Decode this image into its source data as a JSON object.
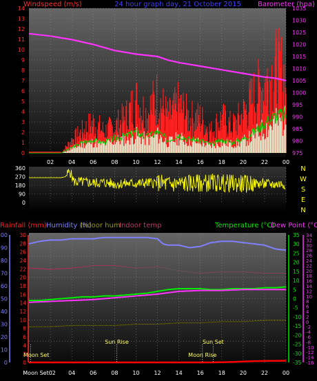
{
  "chart_data": [
    {
      "type": "line",
      "panel": "wind-pressure",
      "title": "24 hour graph day, 21 October 2015",
      "left_axis_label": "Windspeed (m/s)",
      "right_axis_label": "Barometer (hpa)",
      "x_ticks": [
        "02",
        "04",
        "06",
        "08",
        "10",
        "12",
        "14",
        "16",
        "18",
        "20",
        "22",
        "00"
      ],
      "left_ticks": [
        "0",
        "1",
        "2",
        "3",
        "4",
        "5",
        "6",
        "7",
        "8",
        "9",
        "10",
        "11",
        "12",
        "13",
        "14"
      ],
      "right_ticks": [
        "975",
        "980",
        "985",
        "990",
        "995",
        "1000",
        "1005",
        "1010",
        "1015",
        "1020",
        "1025",
        "1030",
        "1035"
      ],
      "ylim_left": [
        0,
        14
      ],
      "ylim_right": [
        975,
        1035
      ],
      "grid": true,
      "colors": {
        "gust": "#ff2020",
        "wind": "#00cc00",
        "barometer": "#ff33ff",
        "direction_bars": "#ddffdd"
      },
      "series": [
        {
          "name": "Barometer",
          "axis": "right",
          "x": [
            0,
            2,
            4,
            6,
            8,
            10,
            12,
            13,
            14,
            16,
            18,
            20,
            22,
            23,
            24
          ],
          "values": [
            1024.5,
            1023.5,
            1022,
            1020,
            1017.5,
            1016,
            1015,
            1013.5,
            1012.5,
            1011,
            1009.5,
            1008,
            1006.5,
            1006,
            1005
          ]
        },
        {
          "name": "Gust",
          "axis": "left",
          "x": [
            0,
            3,
            4,
            5,
            6,
            7,
            8,
            9,
            10,
            11,
            12,
            13,
            14,
            15,
            16,
            17,
            18,
            19,
            20,
            21,
            22,
            23,
            24
          ],
          "values": [
            0,
            0,
            1.5,
            2.5,
            3.5,
            2.5,
            3,
            4,
            6,
            4.5,
            6.5,
            4,
            5.5,
            4,
            4,
            2.5,
            4,
            3,
            4.5,
            6.5,
            8,
            9.5,
            9
          ]
        },
        {
          "name": "Wind",
          "axis": "left",
          "x": [
            0,
            3,
            4,
            5,
            6,
            7,
            8,
            9,
            10,
            11,
            12,
            13,
            14,
            15,
            16,
            17,
            18,
            19,
            20,
            21,
            22,
            23,
            24
          ],
          "values": [
            0,
            0,
            0.5,
            1,
            1.2,
            1,
            1.4,
            1.6,
            2,
            1.5,
            2,
            1.2,
            1.7,
            1.3,
            1.2,
            0.8,
            1.2,
            1,
            1.3,
            2,
            2.8,
            3.5,
            3.6
          ]
        }
      ]
    },
    {
      "type": "line",
      "panel": "wind-direction",
      "right_labels": [
        "N",
        "W",
        "S",
        "E",
        "N"
      ],
      "y_ticks": [
        "360",
        "270",
        "180",
        "90",
        "0"
      ],
      "ylim": [
        0,
        360
      ],
      "color": "#ffff00",
      "series": [
        {
          "x": [
            0,
            3,
            3.4,
            3.8,
            4.2,
            5,
            6,
            7,
            8,
            9,
            10,
            11,
            12,
            13,
            14,
            15,
            16,
            17,
            18,
            19,
            20,
            21,
            22,
            23,
            24
          ],
          "values": [
            260,
            260,
            270,
            330,
            220,
            215,
            205,
            210,
            195,
            200,
            200,
            205,
            210,
            190,
            195,
            200,
            200,
            210,
            205,
            200,
            195,
            200,
            195,
            190,
            195
          ]
        }
      ]
    },
    {
      "type": "line",
      "panel": "temperature-humidity",
      "labels": {
        "rainfall": "Rainfall (mm)",
        "humidity": "Humidity (%)",
        "indoor_hum": "Indoor hum",
        "indoor_temp": "Indoor temp",
        "temperature": "Temperature (°C)",
        "dew_point": "Dew Point (°C)"
      },
      "left_blue_ticks": [
        "0",
        "10",
        "20",
        "30",
        "40",
        "50",
        "60",
        "70",
        "80",
        "90",
        "100"
      ],
      "left_red_ticks": [
        "0",
        "2",
        "4",
        "6",
        "8",
        "10",
        "12",
        "14",
        "16",
        "18",
        "20",
        "22",
        "24",
        "26",
        "28",
        "30"
      ],
      "right_green_ticks": [
        "-35",
        "-30",
        "-25",
        "-20",
        "-15",
        "-10",
        "-5",
        "0",
        "5",
        "10",
        "15",
        "20",
        "25",
        "30",
        "35"
      ],
      "right_pink_ticks": [
        "-16",
        "-14",
        "-12",
        "-10",
        "-8",
        "-6",
        "-4",
        "-2",
        "0",
        "2",
        "4",
        "6",
        "8",
        "10",
        "12",
        "14",
        "16",
        "18",
        "20",
        "22",
        "24",
        "26",
        "28",
        "30",
        "32",
        "34"
      ],
      "ylim_humidity": [
        0,
        100
      ],
      "ylim_rain": [
        0,
        30
      ],
      "ylim_temp": [
        -35,
        35
      ],
      "ylim_temp_right": [
        -16,
        34
      ],
      "annotations": [
        {
          "label": "Moon Set",
          "x": 0.15
        },
        {
          "label": "Sun Rise",
          "x": 8.2
        },
        {
          "label": "Moon Rise",
          "x": 16.2
        },
        {
          "label": "Sun Set",
          "x": 17.2
        }
      ],
      "x_ticks": [
        "Moon Set02",
        "04",
        "06",
        "08",
        "10",
        "12",
        "14",
        "16",
        "18",
        "20",
        "22",
        "00"
      ],
      "grid": true,
      "series": [
        {
          "name": "Humidity",
          "color": "#8080ff",
          "axis": "humidity",
          "x": [
            0,
            1,
            2,
            3,
            4,
            5,
            6,
            7,
            8,
            9,
            10,
            11,
            12,
            12.5,
            13,
            14,
            15,
            16,
            17,
            18,
            19,
            20,
            21,
            22,
            23,
            24
          ],
          "values": [
            93,
            95,
            96,
            96,
            97,
            97,
            97,
            98,
            98,
            98,
            98,
            98,
            97,
            93,
            92,
            92,
            90,
            91,
            94,
            95,
            95,
            94,
            93,
            92,
            89,
            88
          ]
        },
        {
          "name": "Indoor hum",
          "color": "#888800",
          "axis": "humidity",
          "x": [
            0,
            2,
            4,
            6,
            8,
            10,
            12,
            14,
            16,
            18,
            20,
            22,
            24
          ],
          "values": [
            28,
            28,
            29,
            29,
            29,
            30,
            30,
            31,
            31,
            32,
            32,
            33,
            33
          ]
        },
        {
          "name": "Temperature",
          "color": "#00ee00",
          "axis": "temp",
          "x": [
            0,
            1,
            2,
            3,
            4,
            5,
            6,
            7,
            8,
            9,
            10,
            11,
            12,
            13,
            14,
            15,
            16,
            17,
            18,
            19,
            20,
            21,
            22,
            23,
            24
          ],
          "values": [
            -1,
            -1,
            -0.5,
            0,
            0.5,
            1,
            1,
            1.5,
            1.5,
            2,
            2.5,
            3,
            4,
            5,
            5.5,
            5.5,
            5.5,
            5,
            5,
            5.5,
            5.5,
            5.5,
            6,
            6,
            6.5
          ]
        },
        {
          "name": "Dew Point",
          "color": "#ff33ff",
          "axis": "temp",
          "x": [
            0,
            2,
            4,
            6,
            8,
            10,
            12,
            14,
            16,
            18,
            20,
            22,
            24
          ],
          "values": [
            -2,
            -1.5,
            -1,
            -0.5,
            0.5,
            1.5,
            2.5,
            4,
            4.5,
            4.5,
            5,
            5,
            5
          ]
        },
        {
          "name": "Indoor temp",
          "color": "#cc3366",
          "axis": "temp_right",
          "x": [
            0,
            2,
            4,
            6,
            8,
            10,
            12,
            14,
            16,
            18,
            20,
            22,
            24
          ],
          "values": [
            21,
            20.5,
            21,
            22,
            22,
            21,
            21.5,
            20,
            19,
            19.5,
            19.5,
            19,
            19
          ]
        },
        {
          "name": "Rainfall",
          "color": "#ff0000",
          "axis": "rain",
          "x": [
            0,
            17,
            19,
            21,
            24
          ],
          "values": [
            0,
            0,
            0.1,
            0.3,
            0.4
          ]
        }
      ]
    }
  ]
}
